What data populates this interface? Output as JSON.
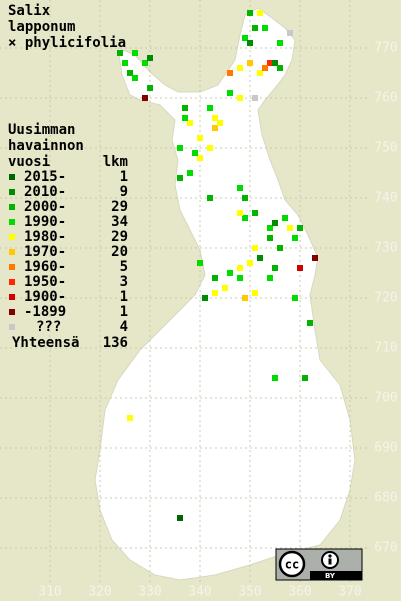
{
  "title": [
    "Salix",
    "lapponum",
    "× phylicifolia"
  ],
  "legend": {
    "header": [
      "Uusimman",
      "havainnon",
      "vuosi"
    ],
    "count_header": "lkm",
    "entries": [
      {
        "label": "2015-",
        "count": 1,
        "color": "#006400"
      },
      {
        "label": "2010-",
        "count": 9,
        "color": "#008c00"
      },
      {
        "label": "2000-",
        "count": 29,
        "color": "#00b400"
      },
      {
        "label": "1990-",
        "count": 34,
        "color": "#00dc00"
      },
      {
        "label": "1980-",
        "count": 29,
        "color": "#ffff00"
      },
      {
        "label": "1970-",
        "count": 20,
        "color": "#ffc800"
      },
      {
        "label": "1960-",
        "count": 5,
        "color": "#ff7800"
      },
      {
        "label": "1950-",
        "count": 3,
        "color": "#ff2800"
      },
      {
        "label": "1900-",
        "count": 1,
        "color": "#d20000"
      },
      {
        "label": "-1899",
        "count": 1,
        "color": "#820000"
      },
      {
        "label": "???",
        "count": 4,
        "color": "#c8c8c8"
      }
    ],
    "total_label": "Yhteensä",
    "total": 136
  },
  "xlim": [
    300,
    380
  ],
  "ylim": [
    660,
    780
  ],
  "xticks": [
    310,
    320,
    330,
    340,
    350,
    360,
    370
  ],
  "yticks": [
    670,
    680,
    690,
    700,
    710,
    720,
    730,
    740,
    750,
    760,
    770
  ],
  "observations": [
    [
      324,
      769,
      2
    ],
    [
      327,
      769,
      3
    ],
    [
      326,
      765,
      2
    ],
    [
      327,
      764,
      3
    ],
    [
      329,
      767,
      3
    ],
    [
      330,
      762,
      2
    ],
    [
      329,
      760,
      9
    ],
    [
      330,
      768,
      1
    ],
    [
      325,
      767,
      3
    ],
    [
      350,
      777,
      2
    ],
    [
      352,
      777,
      4
    ],
    [
      353,
      774,
      3
    ],
    [
      351,
      774,
      2
    ],
    [
      349,
      772,
      3
    ],
    [
      350,
      771,
      1
    ],
    [
      356,
      771,
      3
    ],
    [
      358,
      773,
      10
    ],
    [
      354,
      767,
      7
    ],
    [
      355,
      767,
      1
    ],
    [
      346,
      765,
      6
    ],
    [
      348,
      766,
      4
    ],
    [
      350,
      767,
      5
    ],
    [
      352,
      765,
      4
    ],
    [
      346,
      761,
      3
    ],
    [
      348,
      760,
      4
    ],
    [
      351,
      760,
      10
    ],
    [
      353,
      766,
      6
    ],
    [
      356,
      766,
      2
    ],
    [
      337,
      758,
      2
    ],
    [
      342,
      758,
      3
    ],
    [
      343,
      756,
      4
    ],
    [
      343,
      754,
      5
    ],
    [
      338,
      755,
      4
    ],
    [
      337,
      756,
      3
    ],
    [
      340,
      752,
      4
    ],
    [
      340,
      748,
      4
    ],
    [
      339,
      749,
      3
    ],
    [
      342,
      750,
      4
    ],
    [
      344,
      755,
      4
    ],
    [
      336,
      750,
      3
    ],
    [
      336,
      744,
      2
    ],
    [
      338,
      745,
      3
    ],
    [
      342,
      740,
      2
    ],
    [
      348,
      742,
      3
    ],
    [
      349,
      740,
      2
    ],
    [
      349,
      736,
      3
    ],
    [
      348,
      737,
      4
    ],
    [
      351,
      737,
      2
    ],
    [
      354,
      734,
      3
    ],
    [
      354,
      732,
      2
    ],
    [
      355,
      735,
      1
    ],
    [
      357,
      736,
      3
    ],
    [
      358,
      734,
      4
    ],
    [
      360,
      734,
      2
    ],
    [
      359,
      732,
      3
    ],
    [
      356,
      730,
      2
    ],
    [
      351,
      730,
      4
    ],
    [
      350,
      727,
      4
    ],
    [
      348,
      726,
      4
    ],
    [
      346,
      725,
      3
    ],
    [
      345,
      722,
      4
    ],
    [
      348,
      724,
      3
    ],
    [
      343,
      724,
      2
    ],
    [
      340,
      727,
      3
    ],
    [
      341,
      720,
      1
    ],
    [
      343,
      721,
      4
    ],
    [
      349,
      720,
      5
    ],
    [
      351,
      721,
      4
    ],
    [
      354,
      724,
      3
    ],
    [
      355,
      726,
      2
    ],
    [
      352,
      728,
      1
    ],
    [
      360,
      726,
      8
    ],
    [
      363,
      728,
      9
    ],
    [
      359,
      720,
      3
    ],
    [
      362,
      715,
      2
    ],
    [
      355,
      704,
      3
    ],
    [
      361,
      704,
      2
    ],
    [
      326,
      696,
      4
    ],
    [
      336,
      676,
      0
    ]
  ],
  "badge": {
    "cc": "cc",
    "by": "BY"
  }
}
